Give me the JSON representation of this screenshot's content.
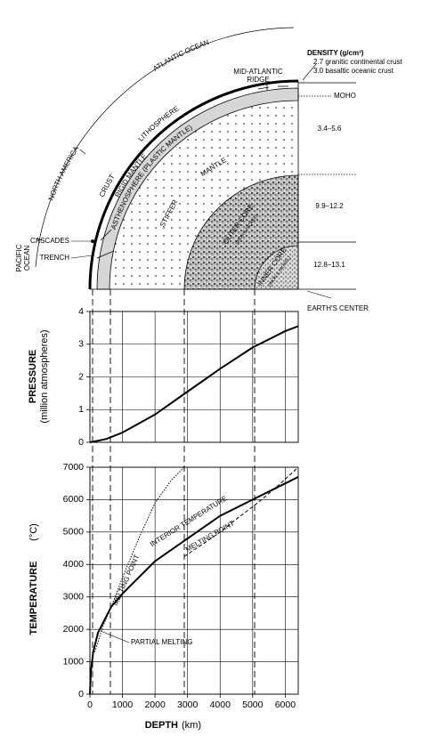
{
  "cross_section": {
    "outer_labels": {
      "pacific": [
        "PACIFIC",
        "OCEAN"
      ],
      "america": "NORTH AMERICA",
      "atlantic": "ATLANTIC OCEAN"
    },
    "layers": {
      "crust": "CRUST",
      "rigid": "RIGID MANTLE",
      "lithosphere": "LITHOSPHERE",
      "asthenosphere": "ASTHENOSPHERE (PLASTIC MANTLE)",
      "mantle": "MANTLE",
      "stiffer": "STIFFER",
      "outer_core": [
        "OUTER CORE",
        "(IRON & NICKEL)"
      ],
      "inner_core": [
        "INNER CORE",
        "(IRON & NICKEL)"
      ]
    },
    "features": {
      "ridge": [
        "MID-ATLANTIC",
        "RIDGE"
      ],
      "cascades": "CASCADES",
      "trench": "TRENCH"
    },
    "density": {
      "title": "DENSITY (g/cm³)",
      "crust": [
        "2.7 granitic continental crust",
        "3.0 basaltic oceanic crust"
      ],
      "moho": "MOHO",
      "ranges": [
        "3.4–5.6",
        "9.9–12.2",
        "12.8–13.1"
      ]
    },
    "center": "EARTH'S CENTER"
  },
  "chart_data": [
    {
      "type": "line",
      "y_label": [
        "PRESSURE",
        "(million atmospheres)"
      ],
      "xlim": [
        0,
        6400
      ],
      "xticks": [
        0,
        1000,
        2000,
        3000,
        4000,
        5000,
        6000
      ],
      "ylim": [
        0,
        4
      ],
      "yticks": [
        0,
        1,
        2,
        3,
        4
      ],
      "grid": true,
      "series": [
        {
          "color": "#000000",
          "linestyle": "solid",
          "x": [
            0,
            500,
            1000,
            2000,
            3000,
            4000,
            5000,
            6000,
            6400
          ],
          "values": [
            0,
            0.1,
            0.3,
            0.85,
            1.55,
            2.25,
            2.9,
            3.4,
            3.55
          ]
        }
      ]
    },
    {
      "type": "line",
      "y_label": [
        "TEMPERATURE",
        "(°C)"
      ],
      "x_label": [
        "DEPTH",
        "(km)"
      ],
      "xlim": [
        0,
        6400
      ],
      "xticks": [
        0,
        1000,
        2000,
        3000,
        4000,
        5000,
        6000
      ],
      "ylim": [
        0,
        7000
      ],
      "yticks": [
        0,
        1000,
        2000,
        3000,
        4000,
        5000,
        6000,
        7000
      ],
      "grid": true,
      "annotations": [
        "PARTIAL MELTING"
      ],
      "series": [
        {
          "name": "INTERIOR TEMPERATURE",
          "color": "#000000",
          "linestyle": "solid",
          "x": [
            0,
            30,
            100,
            250,
            660,
            1000,
            2000,
            3000,
            4000,
            5000,
            6000,
            6400
          ],
          "values": [
            0,
            700,
            1300,
            1900,
            2700,
            3100,
            4100,
            4800,
            5500,
            6000,
            6500,
            6700
          ]
        },
        {
          "name": "MELTING POINT",
          "color": "#000000",
          "linestyle": "dotted",
          "x": [
            150,
            400,
            700,
            1000,
            1500,
            2000,
            2500,
            2900
          ],
          "values": [
            1300,
            2100,
            2800,
            3600,
            4800,
            5900,
            6600,
            7000
          ]
        },
        {
          "name": "MELTING POINT",
          "color": "#000000",
          "linestyle": "dashed",
          "x": [
            2900,
            3500,
            4000,
            4500,
            5150,
            5800,
            6400
          ],
          "values": [
            4250,
            4650,
            5000,
            5400,
            5900,
            6450,
            7000
          ]
        }
      ]
    }
  ]
}
